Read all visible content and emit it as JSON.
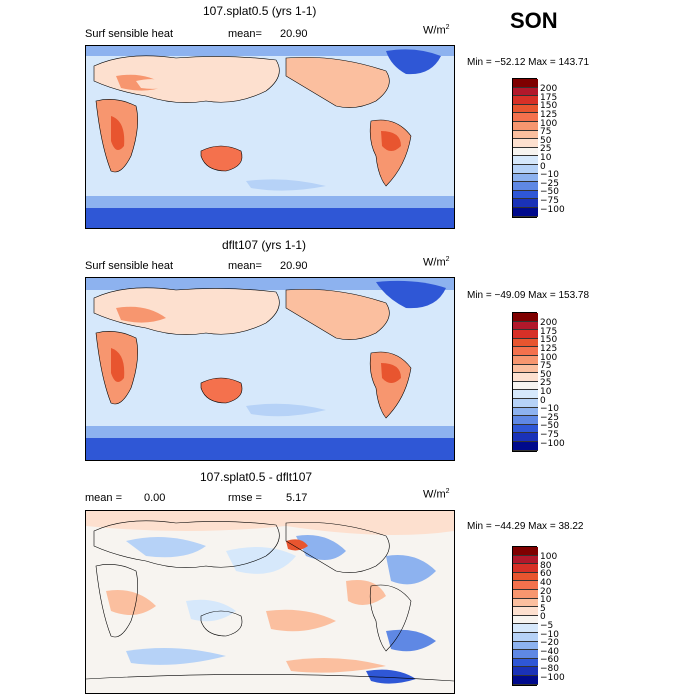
{
  "season": "SON",
  "panels": [
    {
      "title": "107.splat0.5 (yrs 1-1)",
      "left_label": "Surf sensible heat",
      "stat_label": "mean=",
      "stat_value": "20.90",
      "units": "W/m",
      "units_sup": "2",
      "min_max": "Min = −52.12  Max = 143.71",
      "colorbar": {
        "levels": [
          "200",
          "175",
          "150",
          "125",
          "100",
          "75",
          "50",
          "25",
          "10",
          "0",
          "−10",
          "−25",
          "−50",
          "−75",
          "−100"
        ],
        "colors": [
          "#7f0000",
          "#b2182b",
          "#d73027",
          "#e8552f",
          "#f4714d",
          "#f7966f",
          "#fbbf9f",
          "#fde0cf",
          "#f7f4f0",
          "#d6e8fb",
          "#b6d2f7",
          "#8db2ef",
          "#5f88e4",
          "#2f57d6",
          "#1a32b8",
          "#000a8c"
        ]
      }
    },
    {
      "title": "dflt107 (yrs 1-1)",
      "left_label": "Surf sensible heat",
      "stat_label": "mean=",
      "stat_value": "20.90",
      "units": "W/m",
      "units_sup": "2",
      "min_max": "Min = −49.09  Max = 153.78",
      "colorbar": {
        "levels": [
          "200",
          "175",
          "150",
          "125",
          "100",
          "75",
          "50",
          "25",
          "10",
          "0",
          "−10",
          "−25",
          "−50",
          "−75",
          "−100"
        ],
        "colors": [
          "#7f0000",
          "#b2182b",
          "#d73027",
          "#e8552f",
          "#f4714d",
          "#f7966f",
          "#fbbf9f",
          "#fde0cf",
          "#f7f4f0",
          "#d6e8fb",
          "#b6d2f7",
          "#8db2ef",
          "#5f88e4",
          "#2f57d6",
          "#1a32b8",
          "#000a8c"
        ]
      }
    },
    {
      "title": "107.splat0.5 - dflt107",
      "left_label": "mean =",
      "left_value": "0.00",
      "stat_label": "rmse =",
      "stat_value": "5.17",
      "units": "W/m",
      "units_sup": "2",
      "min_max": "Min = −44.29  Max =  38.22",
      "colorbar": {
        "levels": [
          "100",
          "80",
          "60",
          "40",
          "20",
          "10",
          "5",
          "0",
          "−5",
          "−10",
          "−20",
          "−40",
          "−60",
          "−80",
          "−100"
        ],
        "colors": [
          "#7f0000",
          "#b2182b",
          "#d73027",
          "#e8552f",
          "#f4714d",
          "#f7966f",
          "#fbbf9f",
          "#fde0cf",
          "#f7f4f0",
          "#d6e8fb",
          "#b6d2f7",
          "#8db2ef",
          "#5f88e4",
          "#2f57d6",
          "#1a32b8",
          "#000a8c"
        ]
      }
    }
  ]
}
